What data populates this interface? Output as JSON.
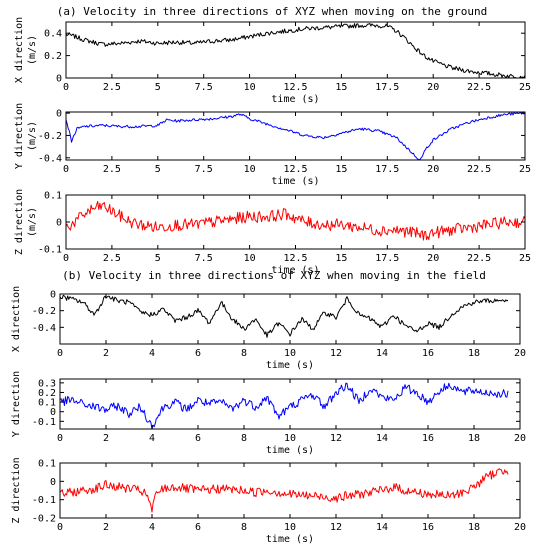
{
  "section_a_title": "(a) Velocity in three directions of XYZ when moving on the ground",
  "section_b_title": "(b) Velocity in three directions of XYZ when moving in the field",
  "chart_data": [
    {
      "type": "line",
      "section": "a",
      "xlabel": "time (s)",
      "ylabel": "X direction",
      "yunit": "(m/s)",
      "xlim": [
        0,
        25
      ],
      "ylim": [
        0,
        0.5
      ],
      "xticks": [
        "0",
        "2.5",
        "5",
        "7.5",
        "10",
        "12.5",
        "15",
        "17.5",
        "20",
        "22.5",
        "25"
      ],
      "yticks": [
        "0",
        "0.2",
        "0.4"
      ],
      "ytick_values": [
        0,
        0.2,
        0.4
      ],
      "color": "#000000",
      "series": [
        {
          "x": [
            0,
            0.5,
            1,
            1.5,
            2,
            3,
            4,
            5,
            6,
            7,
            8,
            9,
            10,
            11,
            12,
            13,
            14,
            15,
            16,
            17,
            17.5,
            18,
            18.5,
            19,
            19.5,
            20,
            21,
            22,
            23,
            24,
            25
          ],
          "y": [
            0.39,
            0.37,
            0.34,
            0.32,
            0.3,
            0.31,
            0.33,
            0.31,
            0.32,
            0.31,
            0.33,
            0.34,
            0.37,
            0.4,
            0.42,
            0.44,
            0.45,
            0.46,
            0.47,
            0.47,
            0.46,
            0.42,
            0.35,
            0.27,
            0.2,
            0.15,
            0.09,
            0.06,
            0.04,
            0.02,
            0.01
          ],
          "noise": 0.02
        }
      ]
    },
    {
      "type": "line",
      "section": "a",
      "xlabel": "time (s)",
      "ylabel": "Y direction",
      "yunit": "(m/s)",
      "xlim": [
        0,
        25
      ],
      "ylim": [
        -0.42,
        0.01
      ],
      "xticks": [
        "0",
        "2.5",
        "5",
        "7.5",
        "10",
        "12.5",
        "15",
        "17.5",
        "20",
        "22.5",
        "25"
      ],
      "yticks": [
        "0",
        "-0.2",
        "-0.4"
      ],
      "ytick_values": [
        0,
        -0.2,
        -0.4
      ],
      "color": "#0000ff",
      "series": [
        {
          "x": [
            0,
            0.3,
            0.6,
            1,
            2,
            3,
            4,
            5,
            5.5,
            6,
            7,
            8,
            9,
            9.5,
            10,
            11,
            12,
            13,
            14,
            15,
            16,
            17,
            18,
            18.5,
            19,
            19.3,
            19.6,
            20,
            21,
            22,
            23,
            24,
            25
          ],
          "y": [
            -0.05,
            -0.25,
            -0.14,
            -0.12,
            -0.11,
            -0.12,
            -0.12,
            -0.11,
            -0.06,
            -0.07,
            -0.06,
            -0.05,
            -0.03,
            -0.01,
            -0.05,
            -0.1,
            -0.15,
            -0.2,
            -0.22,
            -0.18,
            -0.14,
            -0.16,
            -0.22,
            -0.3,
            -0.38,
            -0.42,
            -0.32,
            -0.24,
            -0.14,
            -0.08,
            -0.04,
            -0.01,
            0.0
          ],
          "noise": 0.012
        }
      ]
    },
    {
      "type": "line",
      "section": "a",
      "xlabel": "time (s)",
      "ylabel": "Z direction",
      "yunit": "(m/s)",
      "xlim": [
        0,
        25
      ],
      "ylim": [
        -0.1,
        0.1
      ],
      "xticks": [
        "0",
        "2.5",
        "5",
        "7.5",
        "10",
        "12.5",
        "15",
        "17.5",
        "20",
        "22.5",
        "25"
      ],
      "yticks": [
        "0.1",
        "0",
        "-0.1"
      ],
      "ytick_values": [
        0.1,
        0,
        -0.1
      ],
      "color": "#ff0000",
      "series": [
        {
          "x": [
            0,
            0.5,
            1,
            1.5,
            2,
            2.5,
            3,
            3.5,
            4,
            5,
            6,
            7,
            8,
            9,
            10,
            11,
            12,
            13,
            14,
            15,
            16,
            17,
            18,
            19,
            19.5,
            20,
            21,
            22,
            23,
            24,
            25
          ],
          "y": [
            -0.02,
            0.0,
            0.03,
            0.05,
            0.06,
            0.04,
            0.02,
            0.0,
            -0.01,
            -0.02,
            -0.01,
            -0.01,
            0.0,
            0.01,
            0.02,
            0.02,
            0.03,
            0.0,
            -0.01,
            -0.01,
            -0.02,
            -0.03,
            -0.03,
            -0.04,
            -0.05,
            -0.04,
            -0.03,
            -0.02,
            -0.01,
            0.0,
            0.0
          ],
          "noise": 0.022
        }
      ]
    },
    {
      "type": "line",
      "section": "b",
      "xlabel": "time (s)",
      "ylabel": "X direction",
      "yunit": "",
      "xlim": [
        0,
        20
      ],
      "ylim": [
        -0.6,
        0
      ],
      "xticks": [
        "0",
        "2",
        "4",
        "6",
        "8",
        "10",
        "12",
        "14",
        "16",
        "18",
        "20"
      ],
      "yticks": [
        "0",
        "-0.2",
        "-0.4"
      ],
      "ytick_values": [
        0,
        -0.2,
        -0.4
      ],
      "color": "#000000",
      "series": [
        {
          "x": [
            0,
            0.5,
            1,
            1.5,
            2,
            2.5,
            3,
            3.5,
            4,
            4.5,
            5,
            5.5,
            6,
            6.5,
            7,
            7.5,
            8,
            8.5,
            9,
            9.5,
            10,
            10.5,
            11,
            11.5,
            12,
            12.5,
            13,
            13.5,
            14,
            14.5,
            15,
            15.5,
            16,
            16.5,
            17,
            17.5,
            18,
            18.5,
            19,
            19.5
          ],
          "y": [
            -0.03,
            -0.06,
            -0.1,
            -0.25,
            -0.02,
            -0.08,
            -0.1,
            -0.22,
            -0.25,
            -0.18,
            -0.32,
            -0.28,
            -0.2,
            -0.35,
            -0.1,
            -0.3,
            -0.42,
            -0.3,
            -0.5,
            -0.35,
            -0.48,
            -0.3,
            -0.42,
            -0.22,
            -0.28,
            -0.05,
            -0.25,
            -0.3,
            -0.4,
            -0.25,
            -0.38,
            -0.45,
            -0.35,
            -0.4,
            -0.25,
            -0.15,
            -0.1,
            -0.08,
            -0.08,
            -0.07
          ],
          "noise": 0.03
        }
      ]
    },
    {
      "type": "line",
      "section": "b",
      "xlabel": "time (s)",
      "ylabel": "Y direction",
      "yunit": "",
      "xlim": [
        0,
        20
      ],
      "ylim": [
        -0.18,
        0.34
      ],
      "xticks": [
        "0",
        "2",
        "4",
        "6",
        "8",
        "10",
        "12",
        "14",
        "16",
        "18",
        "20"
      ],
      "yticks": [
        "0.3",
        "0.2",
        "0.1",
        "0",
        "-0.1"
      ],
      "ytick_values": [
        0.3,
        0.2,
        0.1,
        0,
        -0.1
      ],
      "color": "#0000ff",
      "series": [
        {
          "x": [
            0,
            0.5,
            1,
            1.5,
            2,
            2.5,
            3,
            3.5,
            4,
            4.5,
            5,
            5.5,
            6,
            6.5,
            7,
            7.5,
            8,
            8.5,
            9,
            9.5,
            10,
            10.5,
            11,
            11.5,
            12,
            12.5,
            13,
            13.5,
            14,
            14.5,
            15,
            15.5,
            16,
            16.5,
            17,
            17.5,
            18,
            18.5,
            19,
            19.5
          ],
          "y": [
            0.1,
            0.12,
            0.08,
            0.05,
            0.02,
            0.06,
            -0.02,
            0.05,
            -0.15,
            0.05,
            0.1,
            0.02,
            0.12,
            0.08,
            0.1,
            0.03,
            0.12,
            0.05,
            0.15,
            -0.05,
            0.05,
            0.12,
            0.18,
            0.05,
            0.2,
            0.28,
            0.1,
            0.25,
            0.15,
            0.12,
            0.25,
            0.2,
            0.1,
            0.22,
            0.28,
            0.2,
            0.22,
            0.2,
            0.19,
            0.18
          ],
          "noise": 0.045
        }
      ]
    },
    {
      "type": "line",
      "section": "b",
      "xlabel": "time (s)",
      "ylabel": "Z direction",
      "yunit": "",
      "xlim": [
        0,
        20
      ],
      "ylim": [
        -0.2,
        0.1
      ],
      "xticks": [
        "0",
        "2",
        "4",
        "6",
        "8",
        "10",
        "12",
        "14",
        "16",
        "18",
        "20"
      ],
      "yticks": [
        "0.1",
        "0",
        "-0.1",
        "-0.2"
      ],
      "ytick_values": [
        0.1,
        0,
        -0.1,
        -0.2
      ],
      "color": "#ff0000",
      "series": [
        {
          "x": [
            0,
            0.5,
            1,
            1.5,
            2,
            2.5,
            3,
            3.5,
            3.8,
            4,
            4.2,
            4.5,
            5,
            6,
            7,
            8,
            8.5,
            9,
            10,
            11,
            12,
            13,
            14,
            14.5,
            15,
            16,
            17,
            17.5,
            18,
            18.5,
            19,
            19.5
          ],
          "y": [
            -0.07,
            -0.06,
            -0.05,
            -0.04,
            -0.02,
            -0.03,
            -0.04,
            -0.05,
            -0.08,
            -0.16,
            -0.06,
            -0.04,
            -0.03,
            -0.05,
            -0.04,
            -0.05,
            -0.06,
            -0.05,
            -0.07,
            -0.08,
            -0.09,
            -0.07,
            -0.05,
            -0.03,
            -0.05,
            -0.07,
            -0.08,
            -0.06,
            -0.03,
            0.02,
            0.05,
            0.06
          ],
          "noise": 0.025
        }
      ]
    }
  ]
}
